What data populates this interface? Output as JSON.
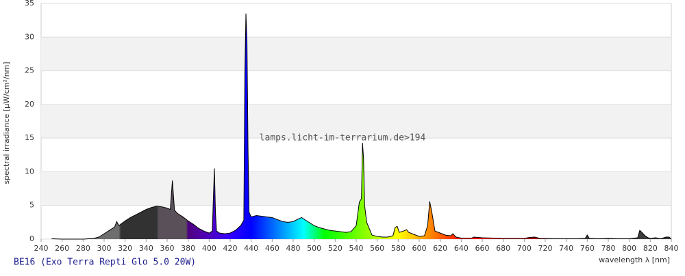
{
  "chart_data": {
    "type": "area",
    "y_label": "spectral irradiance [µW/cm²/nm]",
    "x_label": "wavelength λ [nm]",
    "watermark": "lamps.licht-im-terrarium.de>194",
    "caption": "BE16 (Exo Terra Repti Glo 5.0 20W)",
    "xlim": [
      240,
      840
    ],
    "ylim": [
      0,
      35
    ],
    "xticks": [
      240,
      260,
      280,
      300,
      320,
      340,
      360,
      380,
      400,
      420,
      440,
      460,
      480,
      500,
      520,
      540,
      560,
      580,
      600,
      620,
      640,
      660,
      680,
      700,
      720,
      740,
      760,
      780,
      800,
      820,
      840
    ],
    "yticks": [
      0,
      5,
      10,
      15,
      20,
      25,
      30,
      35
    ],
    "grid": true,
    "x": [
      250,
      260,
      270,
      280,
      290,
      295,
      300,
      305,
      310,
      312,
      314,
      320,
      325,
      330,
      335,
      340,
      345,
      350,
      355,
      360,
      363,
      365,
      367,
      370,
      375,
      380,
      385,
      390,
      395,
      400,
      403,
      404,
      405,
      406,
      407,
      410,
      415,
      420,
      425,
      430,
      433,
      434,
      435,
      436,
      437,
      438,
      440,
      445,
      450,
      455,
      460,
      465,
      470,
      475,
      480,
      485,
      488,
      490,
      495,
      500,
      505,
      510,
      515,
      520,
      525,
      530,
      535,
      540,
      543,
      545,
      546,
      547,
      548,
      550,
      555,
      560,
      565,
      570,
      575,
      577,
      579,
      581,
      585,
      588,
      590,
      595,
      600,
      605,
      608,
      610,
      612,
      615,
      620,
      625,
      630,
      632,
      635,
      640,
      650,
      652,
      660,
      670,
      680,
      690,
      700,
      705,
      710,
      715,
      730,
      750,
      758,
      760,
      762,
      770,
      780,
      790,
      800,
      808,
      810,
      812,
      815,
      818,
      820,
      825,
      830,
      835,
      838,
      840
    ],
    "values": [
      0.05,
      0,
      0,
      0,
      0.1,
      0.3,
      0.8,
      1.3,
      1.8,
      2.6,
      2.0,
      2.7,
      3.2,
      3.6,
      4.0,
      4.4,
      4.7,
      4.9,
      4.8,
      4.6,
      4.4,
      8.7,
      4.3,
      3.8,
      3.3,
      2.7,
      2.2,
      1.6,
      1.2,
      0.9,
      1.2,
      6,
      10.5,
      4,
      1.2,
      0.9,
      0.8,
      0.9,
      1.3,
      2.0,
      2.8,
      24.5,
      33.5,
      29.5,
      13.5,
      4,
      3.3,
      3.5,
      3.4,
      3.3,
      3.2,
      2.9,
      2.6,
      2.5,
      2.6,
      3.0,
      3.2,
      3.0,
      2.5,
      2.0,
      1.7,
      1.5,
      1.3,
      1.2,
      1.1,
      1.0,
      1.1,
      2.0,
      5.5,
      6,
      14.3,
      12,
      5,
      2.5,
      0.6,
      0.4,
      0.3,
      0.3,
      0.5,
      1.7,
      1.9,
      1.0,
      1.2,
      1.4,
      1.0,
      0.7,
      0.4,
      0.5,
      2,
      5.6,
      4,
      1.2,
      0.9,
      0.6,
      0.5,
      0.8,
      0.3,
      0.15,
      0.15,
      0.3,
      0.2,
      0.15,
      0.1,
      0.1,
      0.1,
      0.25,
      0.3,
      0.1,
      0.05,
      0.05,
      0.1,
      0.6,
      0.1,
      0.05,
      0.1,
      0.05,
      0.05,
      0.2,
      1.3,
      1.0,
      0.5,
      0.2,
      0.1,
      0.2,
      0.05,
      0.3,
      0.3,
      0
    ]
  }
}
